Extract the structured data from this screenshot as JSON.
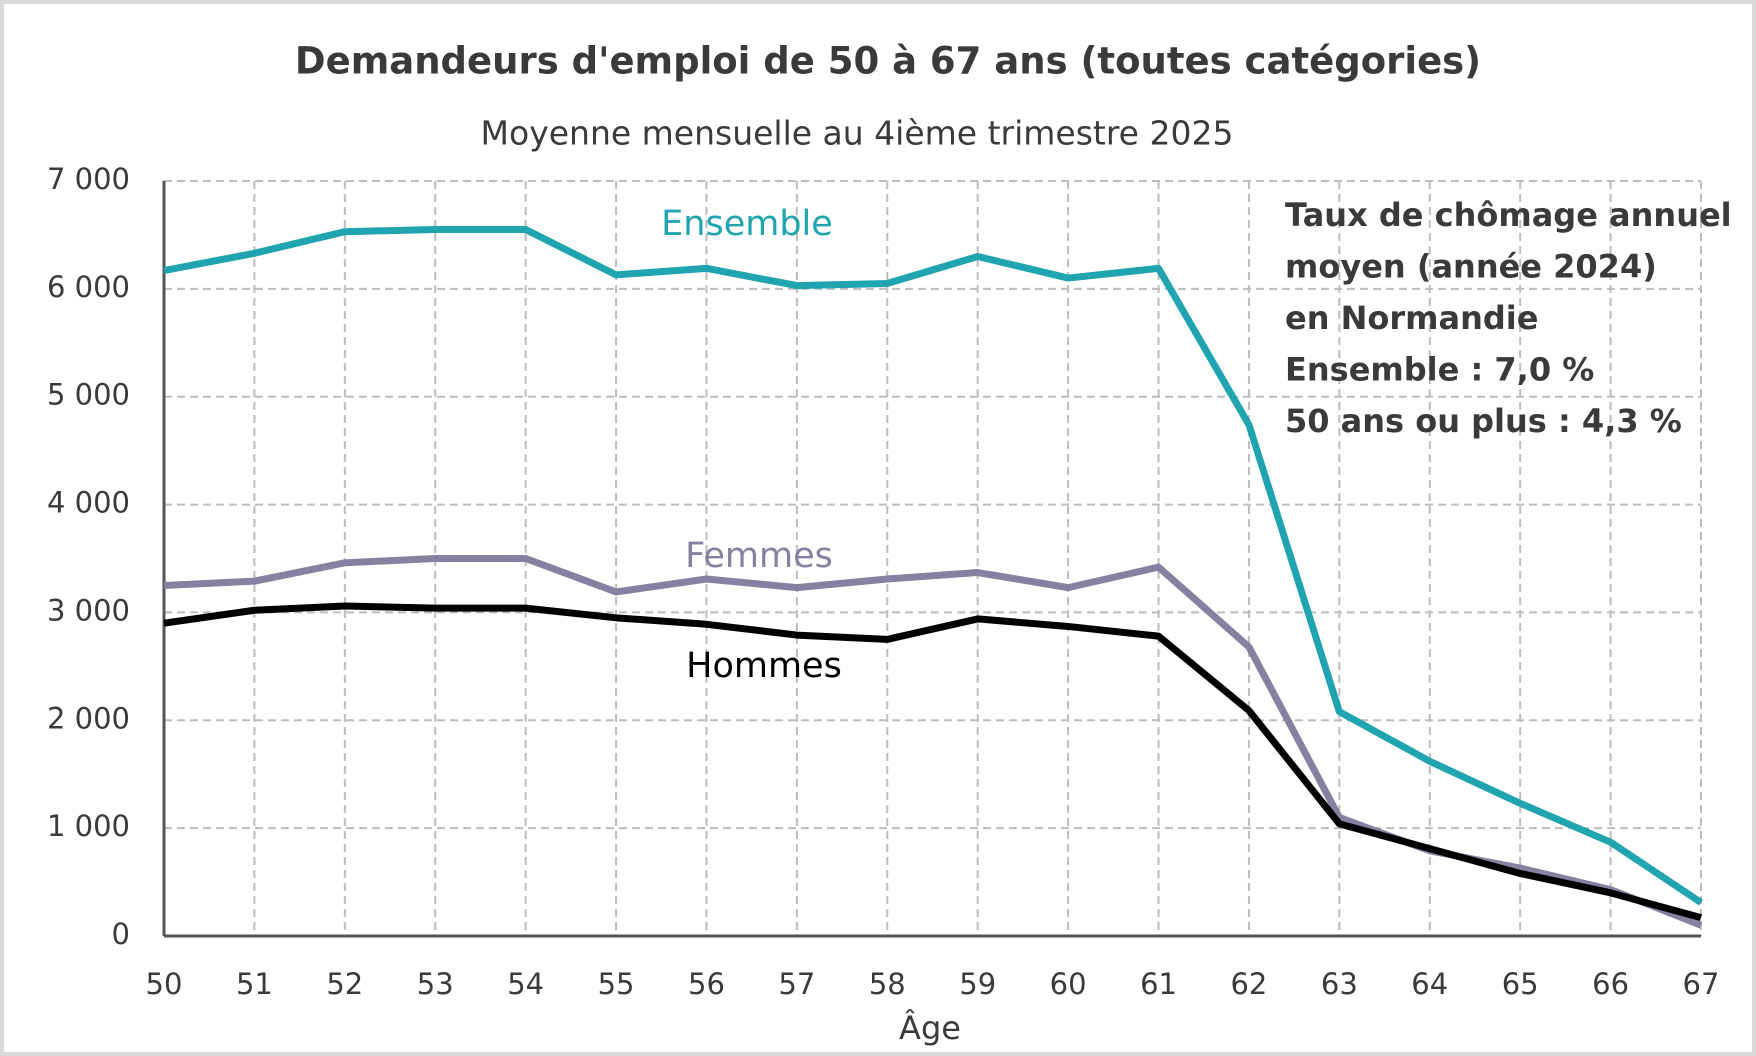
{
  "chart_data": {
    "type": "line",
    "title": "Demandeurs d'emploi de 50 à 67 ans (toutes catégories)",
    "subtitle": "Moyenne mensuelle au 4ième trimestre 2025",
    "x_label": "Âge",
    "annotation": [
      "Taux de chômage annuel",
      "moyen (année 2024)",
      "en Normandie",
      "Ensemble : 7,0 %",
      "50 ans ou plus : 4,3 %"
    ],
    "x": [
      50,
      51,
      52,
      53,
      54,
      55,
      56,
      57,
      58,
      59,
      60,
      61,
      62,
      63,
      64,
      65,
      66,
      67
    ],
    "series": [
      {
        "name": "Ensemble",
        "color": "#1fa4b0",
        "values": [
          6170,
          6330,
          6530,
          6550,
          6550,
          6130,
          6190,
          6030,
          6050,
          6300,
          6100,
          6190,
          4740,
          2080,
          1620,
          1230,
          870,
          310
        ]
      },
      {
        "name": "Femmes",
        "color": "#8581a0",
        "values": [
          3250,
          3290,
          3460,
          3500,
          3500,
          3190,
          3310,
          3230,
          3310,
          3370,
          3230,
          3420,
          2680,
          1100,
          790,
          630,
          430,
          100
        ]
      },
      {
        "name": "Hommes",
        "color": "#000000",
        "values": [
          2900,
          3020,
          3060,
          3040,
          3040,
          2950,
          2890,
          2790,
          2750,
          2940,
          2870,
          2780,
          2090,
          1040,
          810,
          580,
          400,
          170
        ]
      }
    ],
    "xlim": [
      50,
      67
    ],
    "xticks": [
      50,
      51,
      52,
      53,
      54,
      55,
      56,
      57,
      58,
      59,
      60,
      61,
      62,
      63,
      64,
      65,
      66,
      67
    ],
    "ylim": [
      0,
      7000
    ],
    "yticks": [
      0,
      {
        "value": 1000,
        "label": "1 000"
      },
      {
        "value": 2000,
        "label": "2 000"
      },
      {
        "value": 3000,
        "label": "3 000"
      },
      {
        "value": 4000,
        "label": "4 000"
      },
      {
        "value": 5000,
        "label": "5 000"
      },
      {
        "value": 6000,
        "label": "6 000"
      },
      {
        "value": 7000,
        "label": "7 000"
      }
    ],
    "grid": true
  }
}
